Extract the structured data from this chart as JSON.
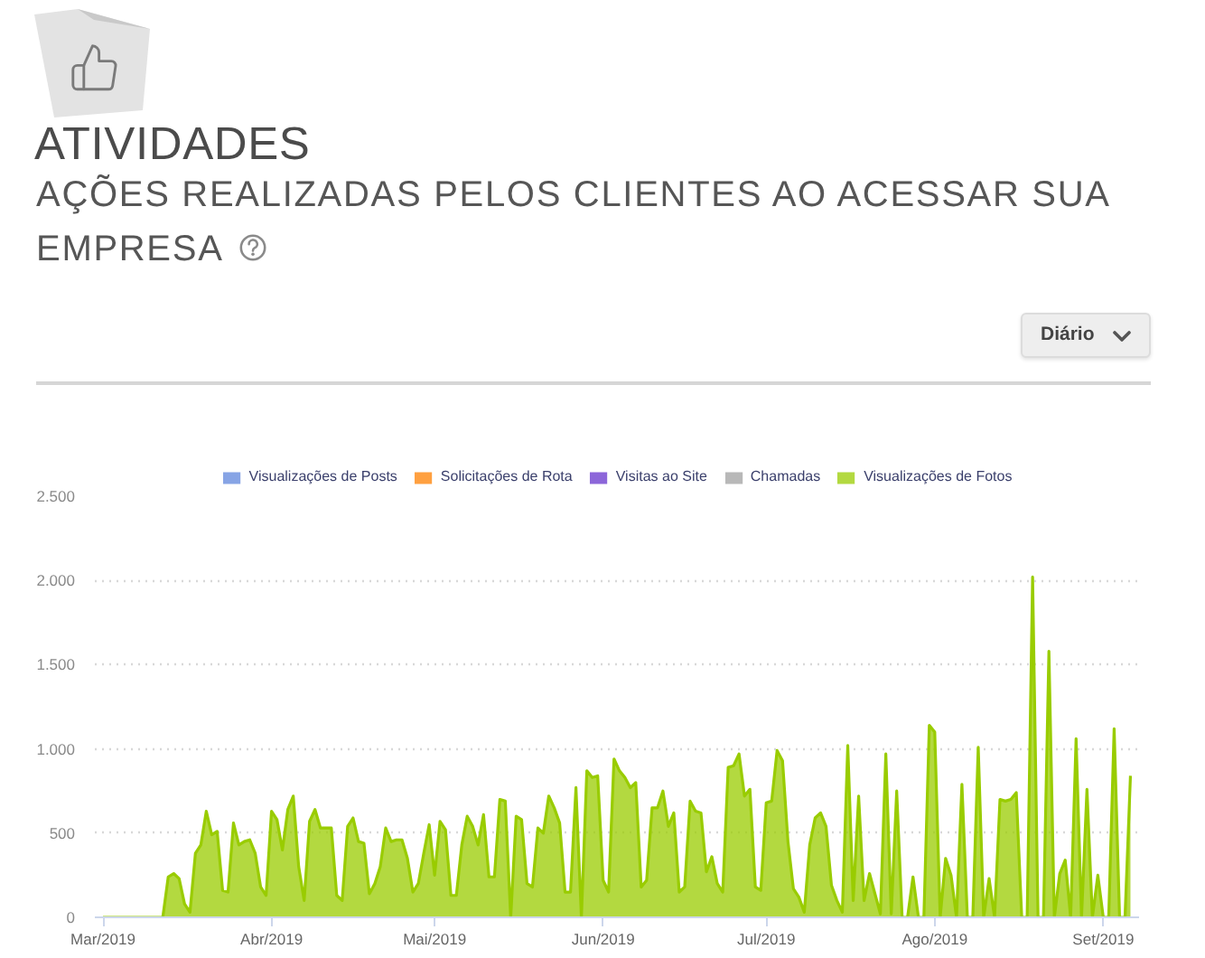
{
  "chart_data": {
    "type": "area",
    "title": "ATIVIDADES",
    "subtitle": "AÇÕES REALIZADAS PELOS CLIENTES AO ACESSAR SUA EMPRESA",
    "annotations": [
      "Diário"
    ],
    "x": [
      "2019-03-01",
      "2019-03-02",
      "2019-03-03",
      "2019-03-04",
      "2019-03-05",
      "2019-03-06",
      "2019-03-07",
      "2019-03-08",
      "2019-03-09",
      "2019-03-10",
      "2019-03-11",
      "2019-03-12",
      "2019-03-13",
      "2019-03-14",
      "2019-03-15",
      "2019-03-16",
      "2019-03-17",
      "2019-03-18",
      "2019-03-19",
      "2019-03-20",
      "2019-03-21",
      "2019-03-22",
      "2019-03-23",
      "2019-03-24",
      "2019-03-25",
      "2019-03-26",
      "2019-03-27",
      "2019-03-28",
      "2019-03-29",
      "2019-03-30",
      "2019-03-31",
      "2019-04-01",
      "2019-04-02",
      "2019-04-03",
      "2019-04-04",
      "2019-04-05",
      "2019-04-06",
      "2019-04-07",
      "2019-04-08",
      "2019-04-09",
      "2019-04-10",
      "2019-04-11",
      "2019-04-12",
      "2019-04-13",
      "2019-04-14",
      "2019-04-15",
      "2019-04-16",
      "2019-04-17",
      "2019-04-18",
      "2019-04-19",
      "2019-04-20",
      "2019-04-21",
      "2019-04-22",
      "2019-04-23",
      "2019-04-24",
      "2019-04-25",
      "2019-04-26",
      "2019-04-27",
      "2019-04-28",
      "2019-04-29",
      "2019-04-30",
      "2019-05-01",
      "2019-05-02",
      "2019-05-03",
      "2019-05-04",
      "2019-05-05",
      "2019-05-06",
      "2019-05-07",
      "2019-05-08",
      "2019-05-09",
      "2019-05-10",
      "2019-05-11",
      "2019-05-12",
      "2019-05-13",
      "2019-05-14",
      "2019-05-15",
      "2019-05-16",
      "2019-05-17",
      "2019-05-18",
      "2019-05-19",
      "2019-05-20",
      "2019-05-21",
      "2019-05-22",
      "2019-05-23",
      "2019-05-24",
      "2019-05-25",
      "2019-05-26",
      "2019-05-27",
      "2019-05-28",
      "2019-05-29",
      "2019-05-30",
      "2019-05-31",
      "2019-06-01",
      "2019-06-02",
      "2019-06-03",
      "2019-06-04",
      "2019-06-05",
      "2019-06-06",
      "2019-06-07",
      "2019-06-08",
      "2019-06-09",
      "2019-06-10",
      "2019-06-11",
      "2019-06-12",
      "2019-06-13",
      "2019-06-14",
      "2019-06-15",
      "2019-06-16",
      "2019-06-17",
      "2019-06-18",
      "2019-06-19",
      "2019-06-20",
      "2019-06-21",
      "2019-06-22",
      "2019-06-23",
      "2019-06-24",
      "2019-06-25",
      "2019-06-26",
      "2019-06-27",
      "2019-06-28",
      "2019-06-29",
      "2019-06-30",
      "2019-07-01",
      "2019-07-02",
      "2019-07-03",
      "2019-07-04",
      "2019-07-05",
      "2019-07-06",
      "2019-07-07",
      "2019-07-08",
      "2019-07-09",
      "2019-07-10",
      "2019-07-11",
      "2019-07-12",
      "2019-07-13",
      "2019-07-14",
      "2019-07-15",
      "2019-07-16",
      "2019-07-17",
      "2019-07-18",
      "2019-07-19",
      "2019-07-20",
      "2019-07-21",
      "2019-07-22",
      "2019-07-23",
      "2019-07-24",
      "2019-07-25",
      "2019-07-26",
      "2019-07-27",
      "2019-07-28",
      "2019-07-29",
      "2019-07-30",
      "2019-07-31",
      "2019-08-01",
      "2019-08-02",
      "2019-08-03",
      "2019-08-04",
      "2019-08-05",
      "2019-08-06",
      "2019-08-07",
      "2019-08-08",
      "2019-08-09",
      "2019-08-10",
      "2019-08-11",
      "2019-08-12",
      "2019-08-13",
      "2019-08-14",
      "2019-08-15",
      "2019-08-16",
      "2019-08-17",
      "2019-08-18",
      "2019-08-19",
      "2019-08-20",
      "2019-08-21",
      "2019-08-22",
      "2019-08-23",
      "2019-08-24",
      "2019-08-25",
      "2019-08-26",
      "2019-08-27",
      "2019-08-28",
      "2019-08-29",
      "2019-08-30",
      "2019-08-31",
      "2019-09-01",
      "2019-09-02",
      "2019-09-03",
      "2019-09-04",
      "2019-09-05",
      "2019-09-06"
    ],
    "series": [
      {
        "name": "Visualizações de Posts",
        "color": "#5f86dc",
        "values": [
          null,
          null,
          null,
          null,
          null,
          null,
          null,
          null,
          null,
          null,
          null,
          null,
          null,
          null,
          null,
          null,
          null,
          null,
          null,
          null,
          null,
          null,
          null,
          null,
          null,
          null,
          null,
          null,
          null,
          null,
          null,
          null,
          null,
          null,
          null,
          null,
          null,
          null,
          null,
          null,
          null,
          null,
          null,
          null,
          null,
          null,
          null,
          null,
          null,
          null,
          null,
          null,
          null,
          null,
          null,
          null,
          null,
          null,
          null,
          null,
          null,
          null,
          null,
          null,
          null,
          null,
          null,
          null,
          null,
          null,
          null,
          null,
          null,
          null,
          null,
          null,
          null,
          null,
          null,
          null,
          null,
          null,
          null,
          null,
          null,
          null,
          null,
          null,
          null,
          null,
          null,
          null,
          null,
          null,
          null,
          null,
          null,
          null,
          null,
          null,
          null,
          null,
          null,
          null,
          null,
          null,
          null,
          null,
          null,
          null,
          null,
          null,
          null,
          null,
          null,
          null,
          null,
          null,
          null,
          null,
          null,
          null,
          null,
          null,
          null,
          null,
          null,
          null,
          null,
          null,
          null,
          null,
          null,
          null,
          null,
          null,
          null,
          null,
          null,
          null,
          null,
          null,
          null,
          null,
          null,
          null,
          null,
          null,
          null,
          null,
          null,
          null,
          null,
          null,
          null,
          null,
          null,
          null,
          null,
          null,
          null,
          null,
          null,
          null,
          null,
          null,
          null,
          null,
          null,
          null,
          null,
          null,
          null,
          null,
          null,
          null,
          null,
          null,
          null,
          null,
          null,
          null,
          null,
          null,
          null,
          null,
          null,
          null,
          null,
          null
        ]
      },
      {
        "name": "Solicitações de Rota",
        "color": "#ff8000",
        "values": [
          null,
          null,
          null,
          null,
          null,
          null,
          null,
          null,
          null,
          null,
          null,
          null,
          null,
          null,
          null,
          null,
          null,
          null,
          null,
          null,
          null,
          null,
          null,
          null,
          null,
          null,
          null,
          null,
          null,
          null,
          null,
          null,
          null,
          null,
          null,
          null,
          null,
          null,
          null,
          null,
          null,
          null,
          null,
          null,
          null,
          null,
          null,
          null,
          null,
          null,
          null,
          null,
          null,
          null,
          null,
          null,
          null,
          null,
          null,
          null,
          null,
          null,
          null,
          null,
          null,
          null,
          null,
          null,
          null,
          null,
          null,
          null,
          null,
          null,
          null,
          null,
          null,
          null,
          null,
          null,
          null,
          null,
          null,
          null,
          null,
          null,
          null,
          null,
          null,
          null,
          null,
          null,
          null,
          null,
          null,
          null,
          null,
          null,
          null,
          null,
          null,
          null,
          null,
          null,
          null,
          null,
          null,
          null,
          null,
          null,
          null,
          null,
          null,
          null,
          null,
          null,
          null,
          null,
          null,
          null,
          null,
          null,
          null,
          null,
          null,
          null,
          null,
          null,
          null,
          null,
          null,
          null,
          null,
          null,
          null,
          null,
          null,
          null,
          null,
          null,
          null,
          null,
          null,
          null,
          null,
          null,
          null,
          null,
          null,
          null,
          null,
          null,
          null,
          null,
          null,
          null,
          null,
          null,
          null,
          null,
          null,
          null,
          null,
          null,
          null,
          null,
          null,
          null,
          null,
          null,
          null,
          null,
          null,
          null,
          null,
          null,
          null,
          null,
          null,
          null,
          null,
          null,
          null,
          null,
          null,
          null,
          null,
          null,
          null,
          null
        ]
      },
      {
        "name": "Visitas ao Site",
        "color": "#6633cc",
        "values": [
          null,
          null,
          null,
          null,
          null,
          null,
          null,
          null,
          null,
          null,
          null,
          null,
          null,
          null,
          null,
          null,
          null,
          null,
          null,
          null,
          null,
          null,
          null,
          null,
          null,
          null,
          null,
          null,
          null,
          null,
          null,
          null,
          null,
          null,
          null,
          null,
          null,
          null,
          null,
          null,
          null,
          null,
          null,
          null,
          null,
          null,
          null,
          null,
          null,
          null,
          null,
          null,
          null,
          null,
          null,
          null,
          null,
          null,
          null,
          null,
          null,
          null,
          null,
          null,
          null,
          null,
          null,
          null,
          null,
          null,
          null,
          null,
          null,
          null,
          null,
          null,
          null,
          null,
          null,
          null,
          null,
          null,
          null,
          null,
          null,
          null,
          null,
          null,
          null,
          null,
          null,
          null,
          null,
          null,
          null,
          null,
          null,
          null,
          null,
          null,
          null,
          null,
          null,
          null,
          null,
          null,
          null,
          null,
          null,
          null,
          null,
          null,
          null,
          null,
          null,
          null,
          null,
          null,
          null,
          null,
          null,
          null,
          null,
          null,
          null,
          null,
          null,
          null,
          null,
          null,
          null,
          null,
          null,
          null,
          null,
          null,
          null,
          null,
          null,
          null,
          null,
          null,
          null,
          null,
          null,
          null,
          null,
          null,
          null,
          null,
          null,
          null,
          null,
          null,
          null,
          null,
          null,
          null,
          null,
          null,
          null,
          null,
          null,
          null,
          null,
          null,
          null,
          null,
          null,
          null,
          null,
          null,
          null,
          null,
          null,
          null,
          null,
          null,
          null,
          null,
          null,
          null,
          null,
          null,
          null,
          null,
          null,
          null,
          null,
          null
        ]
      },
      {
        "name": "Chamadas",
        "color": "#a0a0a0",
        "values": [
          null,
          null,
          null,
          null,
          null,
          null,
          null,
          null,
          null,
          null,
          null,
          null,
          null,
          null,
          null,
          null,
          null,
          null,
          null,
          null,
          null,
          null,
          null,
          null,
          null,
          null,
          null,
          null,
          null,
          null,
          null,
          null,
          null,
          null,
          null,
          null,
          null,
          null,
          null,
          null,
          null,
          null,
          null,
          null,
          null,
          null,
          null,
          null,
          null,
          null,
          null,
          null,
          null,
          null,
          null,
          null,
          null,
          null,
          null,
          null,
          null,
          null,
          null,
          null,
          null,
          null,
          null,
          null,
          null,
          null,
          null,
          null,
          null,
          null,
          null,
          null,
          null,
          null,
          null,
          null,
          null,
          null,
          null,
          null,
          null,
          null,
          null,
          null,
          null,
          null,
          null,
          null,
          null,
          null,
          null,
          null,
          null,
          null,
          null,
          null,
          null,
          null,
          null,
          null,
          null,
          null,
          null,
          null,
          null,
          null,
          null,
          null,
          null,
          null,
          null,
          null,
          null,
          null,
          null,
          null,
          null,
          null,
          null,
          null,
          null,
          null,
          null,
          null,
          null,
          null,
          null,
          null,
          null,
          null,
          null,
          null,
          null,
          null,
          null,
          null,
          null,
          null,
          null,
          null,
          null,
          null,
          null,
          null,
          null,
          null,
          null,
          null,
          null,
          null,
          null,
          null,
          null,
          null,
          null,
          null,
          null,
          null,
          null,
          null,
          null,
          null,
          null,
          null,
          null,
          null,
          null,
          null,
          null,
          null,
          null,
          null,
          null,
          null,
          null,
          null,
          null,
          null,
          null,
          null,
          null,
          null,
          null,
          null,
          null,
          null
        ]
      },
      {
        "name": "Visualizações de Fotos",
        "color": "#99cc00",
        "values": [
          0,
          0,
          0,
          0,
          0,
          0,
          0,
          0,
          0,
          0,
          0,
          0,
          240,
          260,
          230,
          80,
          30,
          380,
          430,
          630,
          490,
          510,
          160,
          150,
          560,
          430,
          450,
          460,
          380,
          180,
          130,
          630,
          580,
          400,
          640,
          720,
          300,
          100,
          570,
          640,
          530,
          530,
          530,
          130,
          100,
          540,
          590,
          450,
          440,
          140,
          200,
          300,
          530,
          450,
          460,
          460,
          350,
          150,
          200,
          380,
          550,
          250,
          570,
          520,
          130,
          130,
          430,
          600,
          540,
          430,
          610,
          240,
          240,
          700,
          690,
          0,
          600,
          580,
          200,
          180,
          530,
          500,
          720,
          650,
          560,
          150,
          150,
          770,
          0,
          870,
          830,
          840,
          220,
          150,
          940,
          870,
          830,
          770,
          800,
          180,
          220,
          650,
          650,
          750,
          540,
          620,
          150,
          180,
          690,
          630,
          620,
          270,
          360,
          200,
          150,
          890,
          900,
          970,
          720,
          760,
          180,
          160,
          680,
          690,
          990,
          930,
          450,
          170,
          120,
          30,
          430,
          590,
          620,
          540,
          190,
          100,
          30,
          1020,
          100,
          720,
          100,
          260,
          140,
          20,
          970,
          20,
          750,
          0,
          0,
          240,
          0,
          0,
          1140,
          1100,
          0,
          350,
          250,
          0,
          790,
          0,
          0,
          1010,
          0,
          230,
          0,
          700,
          690,
          700,
          740,
          0,
          0,
          2020,
          0,
          0,
          1580,
          0,
          260,
          340,
          0,
          1060,
          0,
          760,
          0,
          250,
          0,
          0,
          1120,
          0,
          0,
          840
        ]
      }
    ],
    "xlim": [
      "2019-02-27T12:00",
      "2019-09-07T14:00"
    ],
    "ylim": [
      0,
      2500
    ],
    "xticks": [
      {
        "value": "2019-03-01",
        "label": "Mar/2019"
      },
      {
        "value": "2019-04-01",
        "label": "Abr/2019"
      },
      {
        "value": "2019-05-01",
        "label": "Mai/2019"
      },
      {
        "value": "2019-06-01",
        "label": "Jun/2019"
      },
      {
        "value": "2019-07-01",
        "label": "Jul/2019"
      },
      {
        "value": "2019-08-01",
        "label": "Ago/2019"
      },
      {
        "value": "2019-09-01",
        "label": "Set/2019"
      }
    ],
    "yticks": [
      0,
      500,
      {
        "value": 1000,
        "label": "1.000"
      },
      {
        "value": 1500,
        "label": "1.500"
      },
      {
        "value": 2000,
        "label": "2.000"
      },
      {
        "value": 2500,
        "label": "2.500"
      }
    ],
    "grid": "y",
    "legend": "top"
  }
}
